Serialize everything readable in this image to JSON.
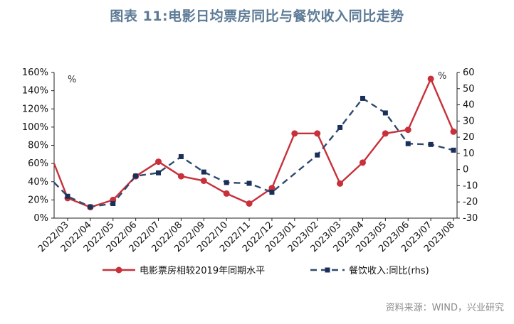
{
  "title": "图表 11:电影日均票房同比与餐饮收入同比走势",
  "source": "资料来源：WIND，兴业研究",
  "colors": {
    "box_office": "#c8303a",
    "catering": "#2f4a6d",
    "marker_catering": "#1a2f5a",
    "title": "#5c7a96"
  },
  "chart_data": {
    "type": "line",
    "categories": [
      "2022/03",
      "2022/04",
      "2022/05",
      "2022/06",
      "2022/07",
      "2022/08",
      "2022/09",
      "2022/10",
      "2022/11",
      "2022/12",
      "2023/01",
      "2023/02",
      "2023/03",
      "2023/04",
      "2023/05",
      "2023/06",
      "2023/07",
      "2023/08"
    ],
    "series": [
      {
        "name": "电影票房相较2019年同期水平",
        "axis": "left",
        "style": "solid",
        "start_value": 60,
        "values": [
          22,
          12,
          20,
          46,
          62,
          46,
          41,
          27,
          16,
          33,
          93,
          93,
          38,
          61,
          93,
          97,
          153,
          95
        ]
      },
      {
        "name": "餐饮收入:同比(rhs)",
        "axis": "right",
        "style": "dashed",
        "start_value": -8,
        "values": [
          -16.5,
          -23,
          -21,
          -4,
          -2,
          8,
          -1.5,
          -8,
          -8.5,
          -14,
          null,
          9,
          26,
          44,
          35,
          16,
          15.5,
          12
        ]
      }
    ],
    "left_axis": {
      "unit": "%",
      "ylim": [
        0,
        160
      ],
      "ticks": [
        "0%",
        "20%",
        "40%",
        "60%",
        "80%",
        "100%",
        "120%",
        "140%",
        "160%"
      ]
    },
    "right_axis": {
      "unit": "%",
      "ylim": [
        -30,
        60
      ],
      "ticks": [
        "-30",
        "-20",
        "-10",
        "0",
        "10",
        "20",
        "30",
        "40",
        "50",
        "60"
      ]
    },
    "legend_position": "bottom",
    "grid": false
  }
}
